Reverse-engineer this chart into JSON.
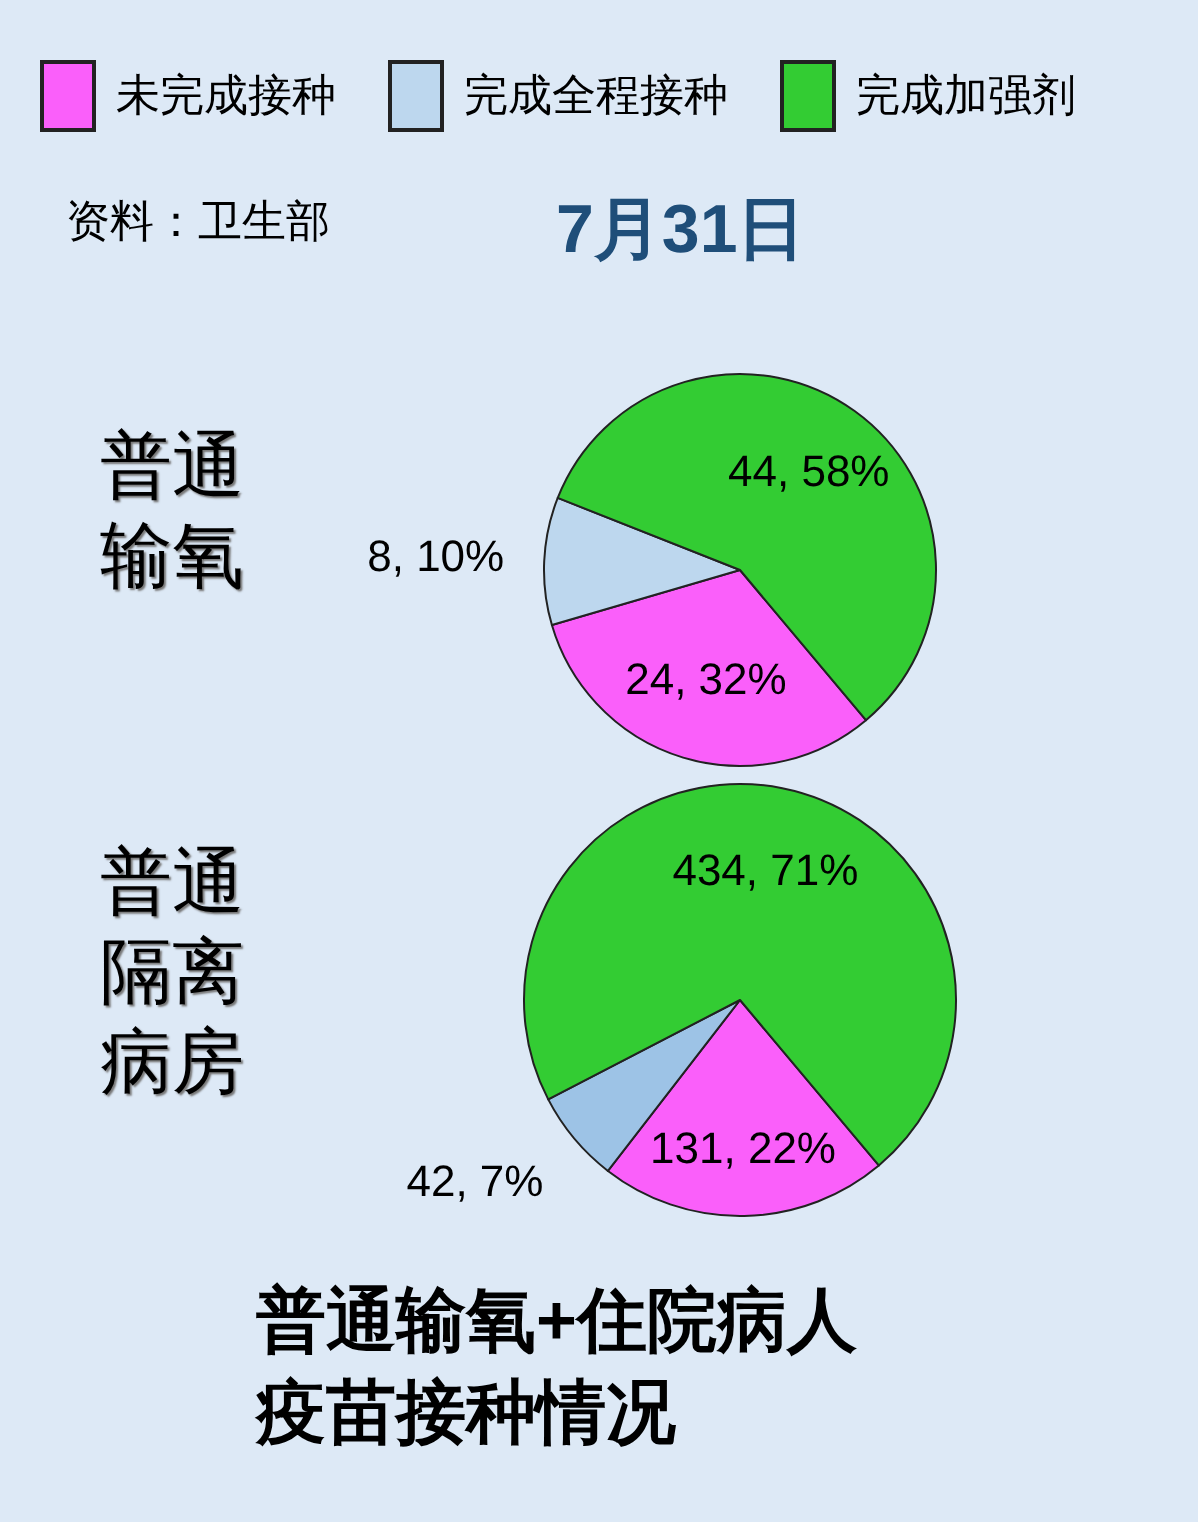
{
  "chart_data": [
    {
      "type": "pie",
      "title": "普通输氧",
      "categories": [
        "未完成接种",
        "完成全程接种",
        "完成加强剂"
      ],
      "values": [
        24,
        8,
        44
      ],
      "colors": [
        "#fa5ffa",
        "#bdd7ee",
        "#33cc33"
      ],
      "value_labels": [
        "24, 32%",
        "8, 10%",
        "44, 58%"
      ],
      "legend": "top",
      "annotations": [
        "资料：卫生部",
        "7月31日"
      ]
    },
    {
      "type": "pie",
      "title": "普通隔离病房",
      "values": [
        131,
        42,
        434
      ],
      "colors": [
        "#fa5ffa",
        "#9dc3e6",
        "#33cc33"
      ],
      "value_labels": [
        "131, 22%",
        "42, 7%",
        "434, 71%"
      ],
      "annotations": [
        "普通输氧+住院病人疫苗接种情况"
      ]
    }
  ]
}
